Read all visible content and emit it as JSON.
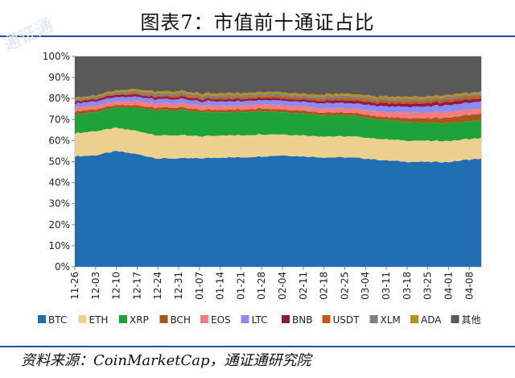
{
  "title": "图表7：市值前十通证占比",
  "source": "资料来源：CoinMarketCap，通证通研究院",
  "chart_data": {
    "type": "area",
    "stacked": true,
    "percent": true,
    "x": [
      "11-26",
      "11-27",
      "11-28",
      "11-29",
      "11-30",
      "12-01",
      "12-02",
      "12-03",
      "12-04",
      "12-05",
      "12-06",
      "12-07",
      "12-08",
      "12-09",
      "12-10",
      "12-11",
      "12-12",
      "12-13",
      "12-14",
      "12-15",
      "12-16",
      "12-17",
      "12-18",
      "12-19",
      "12-20",
      "12-21",
      "12-22",
      "12-23",
      "12-24",
      "12-25",
      "12-26",
      "12-27",
      "12-28",
      "12-29",
      "12-30",
      "12-31",
      "01-01",
      "01-02",
      "01-03",
      "01-04",
      "01-05",
      "01-06",
      "01-07",
      "01-08",
      "01-09",
      "01-10",
      "01-11",
      "01-12",
      "01-13",
      "01-14",
      "01-15",
      "01-16",
      "01-17",
      "01-18",
      "01-19",
      "01-20",
      "01-21",
      "01-22",
      "01-23",
      "01-24",
      "01-25",
      "01-26",
      "01-27",
      "01-28",
      "01-29",
      "01-30",
      "01-31",
      "02-01",
      "02-02",
      "02-03",
      "02-04",
      "02-05",
      "02-06",
      "02-07",
      "02-08",
      "02-09",
      "02-10",
      "02-11",
      "02-12",
      "02-13",
      "02-14",
      "02-15",
      "02-16",
      "02-17",
      "02-18",
      "02-19",
      "02-20",
      "02-21",
      "02-22",
      "02-23",
      "02-24",
      "02-25",
      "02-26",
      "02-27",
      "02-28",
      "03-01",
      "03-02",
      "03-03",
      "03-04",
      "03-05",
      "03-06",
      "03-07",
      "03-08",
      "03-09",
      "03-10",
      "03-11",
      "03-12",
      "03-13",
      "03-14",
      "03-15",
      "03-16",
      "03-17",
      "03-18",
      "03-19",
      "03-20",
      "03-21",
      "03-22",
      "03-23",
      "03-24",
      "03-25",
      "03-26",
      "03-27",
      "03-28",
      "03-29",
      "03-30",
      "03-31",
      "04-01",
      "04-02",
      "04-03",
      "04-04",
      "04-05",
      "04-06",
      "04-07",
      "04-08",
      "04-09",
      "04-10",
      "04-11",
      "04-12"
    ],
    "xtick_labels": [
      "11-26",
      "12-03",
      "12-10",
      "12-17",
      "12-24",
      "12-31",
      "01-07",
      "01-14",
      "01-21",
      "01-28",
      "02-04",
      "02-11",
      "02-18",
      "02-25",
      "03-04",
      "03-11",
      "03-18",
      "03-25",
      "04-01",
      "04-08"
    ],
    "ytick_labels": [
      "0%",
      "10%",
      "20%",
      "30%",
      "40%",
      "50%",
      "60%",
      "70%",
      "80%",
      "90%",
      "100%"
    ],
    "ylim": [
      0,
      100
    ],
    "keypoints": {
      "BTC": [
        [
          0,
          52.5
        ],
        [
          7,
          53
        ],
        [
          14,
          55
        ],
        [
          21,
          53.5
        ],
        [
          28,
          51.5
        ],
        [
          35,
          51.5
        ],
        [
          42,
          51.5
        ],
        [
          49,
          52
        ],
        [
          56,
          52
        ],
        [
          63,
          52.5
        ],
        [
          70,
          53
        ],
        [
          77,
          52.5
        ],
        [
          84,
          52
        ],
        [
          91,
          52
        ],
        [
          98,
          51.5
        ],
        [
          105,
          50.5
        ],
        [
          112,
          50
        ],
        [
          119,
          49.8
        ],
        [
          126,
          49.8
        ],
        [
          133,
          51
        ],
        [
          138,
          51.5
        ]
      ],
      "ETH": [
        [
          0,
          11
        ],
        [
          7,
          11.5
        ],
        [
          14,
          11
        ],
        [
          21,
          11
        ],
        [
          28,
          11
        ],
        [
          35,
          11
        ],
        [
          42,
          10.5
        ],
        [
          49,
          10.5
        ],
        [
          56,
          10.5
        ],
        [
          63,
          10.5
        ],
        [
          70,
          10
        ],
        [
          77,
          10
        ],
        [
          84,
          10
        ],
        [
          91,
          10
        ],
        [
          98,
          10
        ],
        [
          105,
          10
        ],
        [
          112,
          10
        ],
        [
          119,
          10
        ],
        [
          126,
          10
        ],
        [
          133,
          9.8
        ],
        [
          138,
          10
        ]
      ],
      "XRP": [
        [
          0,
          9
        ],
        [
          7,
          9
        ],
        [
          14,
          9.5
        ],
        [
          21,
          11
        ],
        [
          28,
          12
        ],
        [
          35,
          12
        ],
        [
          42,
          11.5
        ],
        [
          49,
          11
        ],
        [
          56,
          11
        ],
        [
          63,
          11
        ],
        [
          70,
          10.5
        ],
        [
          77,
          10.5
        ],
        [
          84,
          10
        ],
        [
          91,
          10
        ],
        [
          98,
          9.5
        ],
        [
          105,
          9
        ],
        [
          112,
          9
        ],
        [
          119,
          8.5
        ],
        [
          126,
          8.5
        ],
        [
          133,
          8.5
        ],
        [
          138,
          8.5
        ]
      ],
      "BCH": [
        [
          0,
          1.5
        ],
        [
          7,
          1.3
        ],
        [
          14,
          1.3
        ],
        [
          21,
          1.2
        ],
        [
          28,
          1.2
        ],
        [
          35,
          1.2
        ],
        [
          42,
          1.2
        ],
        [
          49,
          1.2
        ],
        [
          56,
          1.2
        ],
        [
          63,
          1.3
        ],
        [
          70,
          1.3
        ],
        [
          77,
          1.3
        ],
        [
          84,
          1.3
        ],
        [
          91,
          1.3
        ],
        [
          98,
          1.5
        ],
        [
          105,
          1.5
        ],
        [
          112,
          1.8
        ],
        [
          119,
          2.2
        ],
        [
          126,
          2.6
        ],
        [
          133,
          3
        ],
        [
          138,
          3
        ]
      ],
      "EOS": [
        [
          0,
          1.8
        ],
        [
          7,
          1.8
        ],
        [
          14,
          1.8
        ],
        [
          21,
          2
        ],
        [
          28,
          2
        ],
        [
          35,
          2
        ],
        [
          42,
          2
        ],
        [
          49,
          2
        ],
        [
          56,
          2
        ],
        [
          63,
          2
        ],
        [
          70,
          2
        ],
        [
          77,
          2
        ],
        [
          84,
          2
        ],
        [
          91,
          2
        ],
        [
          98,
          2.2
        ],
        [
          105,
          2.4
        ],
        [
          112,
          2.5
        ],
        [
          119,
          2.7
        ],
        [
          126,
          2.8
        ],
        [
          133,
          2.5
        ],
        [
          138,
          2.4
        ]
      ],
      "LTC": [
        [
          0,
          2
        ],
        [
          7,
          2
        ],
        [
          14,
          2
        ],
        [
          21,
          2
        ],
        [
          28,
          2
        ],
        [
          35,
          2
        ],
        [
          42,
          2
        ],
        [
          49,
          2
        ],
        [
          56,
          2
        ],
        [
          63,
          2
        ],
        [
          70,
          2.2
        ],
        [
          77,
          2.2
        ],
        [
          84,
          2.5
        ],
        [
          91,
          2.5
        ],
        [
          98,
          2.5
        ],
        [
          105,
          2.7
        ],
        [
          112,
          2.8
        ],
        [
          119,
          3
        ],
        [
          126,
          3.2
        ],
        [
          133,
          3.3
        ],
        [
          138,
          3.3
        ]
      ],
      "BNB": [
        [
          0,
          1
        ],
        [
          7,
          1
        ],
        [
          14,
          1
        ],
        [
          21,
          1
        ],
        [
          28,
          1
        ],
        [
          35,
          1
        ],
        [
          42,
          1
        ],
        [
          49,
          1
        ],
        [
          56,
          1
        ],
        [
          63,
          1
        ],
        [
          70,
          1
        ],
        [
          77,
          1
        ],
        [
          84,
          1.2
        ],
        [
          91,
          1.2
        ],
        [
          98,
          1.3
        ],
        [
          105,
          1.4
        ],
        [
          112,
          1.5
        ],
        [
          119,
          1.5
        ],
        [
          126,
          1.5
        ],
        [
          133,
          1.5
        ],
        [
          138,
          1.5
        ]
      ],
      "USDT": [
        [
          0,
          0.5
        ],
        [
          7,
          0.5
        ],
        [
          14,
          0.5
        ],
        [
          21,
          0.6
        ],
        [
          28,
          0.7
        ],
        [
          35,
          0.8
        ],
        [
          42,
          0.8
        ],
        [
          49,
          0.8
        ],
        [
          56,
          0.9
        ],
        [
          63,
          0.9
        ],
        [
          70,
          1
        ],
        [
          77,
          1
        ],
        [
          84,
          1
        ],
        [
          91,
          1.1
        ],
        [
          98,
          1.2
        ],
        [
          105,
          1.2
        ],
        [
          112,
          1.3
        ],
        [
          119,
          1.3
        ],
        [
          126,
          1.3
        ],
        [
          133,
          1.3
        ],
        [
          138,
          1.3
        ]
      ],
      "XLM": [
        [
          0,
          0.7
        ],
        [
          7,
          0.7
        ],
        [
          14,
          0.8
        ],
        [
          21,
          1
        ],
        [
          28,
          1
        ],
        [
          35,
          1
        ],
        [
          42,
          1
        ],
        [
          49,
          1
        ],
        [
          56,
          1
        ],
        [
          63,
          1
        ],
        [
          70,
          1
        ],
        [
          77,
          1
        ],
        [
          84,
          1
        ],
        [
          91,
          1
        ],
        [
          98,
          1
        ],
        [
          105,
          1
        ],
        [
          112,
          1
        ],
        [
          119,
          1
        ],
        [
          126,
          1
        ],
        [
          133,
          1
        ],
        [
          138,
          1
        ]
      ],
      "ADA": [
        [
          0,
          0.7
        ],
        [
          7,
          0.7
        ],
        [
          14,
          0.8
        ],
        [
          21,
          1
        ],
        [
          28,
          1
        ],
        [
          35,
          1
        ],
        [
          42,
          1
        ],
        [
          49,
          1
        ],
        [
          56,
          1
        ],
        [
          63,
          1
        ],
        [
          70,
          1
        ],
        [
          77,
          1
        ],
        [
          84,
          1
        ],
        [
          91,
          1
        ],
        [
          98,
          1
        ],
        [
          105,
          1
        ],
        [
          112,
          1
        ],
        [
          119,
          1
        ],
        [
          126,
          1
        ],
        [
          133,
          1
        ],
        [
          138,
          1
        ]
      ]
    },
    "series": [
      {
        "name": "BTC",
        "color": "#1f6fb2"
      },
      {
        "name": "ETH",
        "color": "#ecd08e"
      },
      {
        "name": "XRP",
        "color": "#1ea33a"
      },
      {
        "name": "BCH",
        "color": "#a8561a"
      },
      {
        "name": "EOS",
        "color": "#f47c7c"
      },
      {
        "name": "LTC",
        "color": "#8a8cf0"
      },
      {
        "name": "BNB",
        "color": "#8e1a4d"
      },
      {
        "name": "USDT",
        "color": "#c45a12"
      },
      {
        "name": "XLM",
        "color": "#7f7f7f"
      },
      {
        "name": "ADA",
        "color": "#b5901c"
      },
      {
        "name": "其他",
        "color": "#595959"
      }
    ],
    "legend_position": "bottom"
  },
  "watermark": "通证通"
}
